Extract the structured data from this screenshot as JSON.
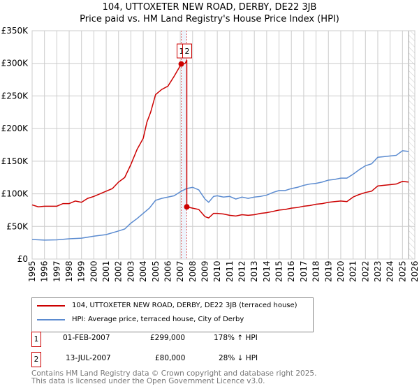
{
  "title": "104, UTTOXETER NEW ROAD, DERBY, DE22 3JB",
  "subtitle": "Price paid vs. HM Land Registry's House Price Index (HPI)",
  "chart_data": {
    "type": "line",
    "ylim": [
      0,
      350000
    ],
    "xlim": [
      1995,
      2026
    ],
    "yticks": [
      {
        "v": 0,
        "label": "£0"
      },
      {
        "v": 50000,
        "label": "£50K"
      },
      {
        "v": 100000,
        "label": "£100K"
      },
      {
        "v": 150000,
        "label": "£150K"
      },
      {
        "v": 200000,
        "label": "£200K"
      },
      {
        "v": 250000,
        "label": "£250K"
      },
      {
        "v": 300000,
        "label": "£300K"
      },
      {
        "v": 350000,
        "label": "£350K"
      }
    ],
    "xticks": [
      "1995",
      "1996",
      "1997",
      "1998",
      "1999",
      "2000",
      "2001",
      "2002",
      "2003",
      "2004",
      "2005",
      "2006",
      "2007",
      "2008",
      "2009",
      "2010",
      "2011",
      "2012",
      "2013",
      "2014",
      "2015",
      "2016",
      "2017",
      "2018",
      "2019",
      "2020",
      "2021",
      "2022",
      "2023",
      "2024",
      "2025",
      "2026"
    ],
    "grid": true,
    "forecast_from": 2025.5,
    "series": [
      {
        "name": "104, UTTOXETER NEW ROAD, DERBY, DE22 3JB (terraced house)",
        "color": "#cc0000",
        "points": [
          [
            1995,
            83
          ],
          [
            1995.5,
            80
          ],
          [
            1996,
            81
          ],
          [
            1997,
            81
          ],
          [
            1997.5,
            85
          ],
          [
            1998,
            85
          ],
          [
            1998.5,
            89
          ],
          [
            1999,
            87
          ],
          [
            1999.5,
            93
          ],
          [
            2000,
            96
          ],
          [
            2000.5,
            100
          ],
          [
            2001,
            104
          ],
          [
            2001.5,
            108
          ],
          [
            2002,
            118
          ],
          [
            2002.5,
            125
          ],
          [
            2003,
            145
          ],
          [
            2003.5,
            168
          ],
          [
            2004,
            185
          ],
          [
            2004.3,
            210
          ],
          [
            2004.6,
            225
          ],
          [
            2005,
            252
          ],
          [
            2005.5,
            260
          ],
          [
            2006,
            265
          ],
          [
            2006.5,
            280
          ],
          [
            2007.08,
            299
          ],
          [
            2007.4,
            300
          ],
          [
            2007.53,
            305
          ],
          [
            2007.53,
            80
          ],
          [
            2008,
            78
          ],
          [
            2008.5,
            76
          ],
          [
            2009,
            65
          ],
          [
            2009.3,
            63
          ],
          [
            2009.7,
            70
          ],
          [
            2010,
            70
          ],
          [
            2010.5,
            69
          ],
          [
            2011,
            67
          ],
          [
            2011.5,
            66
          ],
          [
            2012,
            68
          ],
          [
            2012.5,
            67
          ],
          [
            2013,
            68
          ],
          [
            2013.5,
            70
          ],
          [
            2014,
            71
          ],
          [
            2014.5,
            73
          ],
          [
            2015,
            75
          ],
          [
            2015.5,
            76
          ],
          [
            2016,
            78
          ],
          [
            2016.5,
            79
          ],
          [
            2017,
            81
          ],
          [
            2017.5,
            82
          ],
          [
            2018,
            84
          ],
          [
            2018.5,
            85
          ],
          [
            2019,
            87
          ],
          [
            2019.5,
            88
          ],
          [
            2020,
            89
          ],
          [
            2020.5,
            88
          ],
          [
            2021,
            95
          ],
          [
            2021.5,
            99
          ],
          [
            2022,
            102
          ],
          [
            2022.5,
            104
          ],
          [
            2023,
            112
          ],
          [
            2023.5,
            113
          ],
          [
            2024,
            114
          ],
          [
            2024.5,
            115
          ],
          [
            2025,
            119
          ],
          [
            2025.5,
            118
          ]
        ]
      },
      {
        "name": "HPI: Average price, terraced house, City of Derby",
        "color": "#5b8bd0",
        "points": [
          [
            1995,
            30
          ],
          [
            1996,
            29
          ],
          [
            1997,
            29.5
          ],
          [
            1998,
            31
          ],
          [
            1999,
            32
          ],
          [
            2000,
            35
          ],
          [
            2001,
            37.5
          ],
          [
            2002,
            43
          ],
          [
            2002.5,
            46
          ],
          [
            2003,
            55
          ],
          [
            2003.5,
            62
          ],
          [
            2004,
            70
          ],
          [
            2004.5,
            78
          ],
          [
            2005,
            90
          ],
          [
            2005.5,
            93
          ],
          [
            2006,
            95
          ],
          [
            2006.5,
            97
          ],
          [
            2007,
            103
          ],
          [
            2007.5,
            108
          ],
          [
            2008,
            110
          ],
          [
            2008.5,
            106
          ],
          [
            2009,
            92
          ],
          [
            2009.3,
            87
          ],
          [
            2009.7,
            96
          ],
          [
            2010,
            97
          ],
          [
            2010.5,
            95
          ],
          [
            2011,
            96
          ],
          [
            2011.5,
            92
          ],
          [
            2012,
            95
          ],
          [
            2012.5,
            93
          ],
          [
            2013,
            95
          ],
          [
            2013.5,
            96
          ],
          [
            2014,
            98
          ],
          [
            2014.5,
            102
          ],
          [
            2015,
            105
          ],
          [
            2015.5,
            105
          ],
          [
            2016,
            108
          ],
          [
            2016.5,
            110
          ],
          [
            2017,
            113
          ],
          [
            2017.5,
            115
          ],
          [
            2018,
            116
          ],
          [
            2018.5,
            118
          ],
          [
            2019,
            121
          ],
          [
            2019.5,
            122
          ],
          [
            2020,
            124
          ],
          [
            2020.5,
            124
          ],
          [
            2021,
            130
          ],
          [
            2021.5,
            137
          ],
          [
            2022,
            143
          ],
          [
            2022.5,
            146
          ],
          [
            2023,
            156
          ],
          [
            2023.5,
            157
          ],
          [
            2024,
            158
          ],
          [
            2024.5,
            159
          ],
          [
            2025,
            166
          ],
          [
            2025.5,
            165
          ]
        ]
      }
    ],
    "points_unit": "thousands GBP",
    "annotations": [
      {
        "label": "1",
        "x": 2007.08,
        "y": 299000
      },
      {
        "label": "2",
        "x": 2007.53,
        "y": 80000
      }
    ]
  },
  "legend": [
    "104, UTTOXETER NEW ROAD, DERBY, DE22 3JB (terraced house)",
    "HPI: Average price, terraced house, City of Derby"
  ],
  "transactions": [
    {
      "num": "1",
      "date": "01-FEB-2007",
      "price": "£299,000",
      "hpi": "178% ↑ HPI"
    },
    {
      "num": "2",
      "date": "13-JUL-2007",
      "price": "£80,000",
      "hpi": "28% ↓ HPI"
    }
  ],
  "footer": [
    "Contains HM Land Registry data © Crown copyright and database right 2025.",
    "This data is licensed under the Open Government Licence v3.0."
  ]
}
